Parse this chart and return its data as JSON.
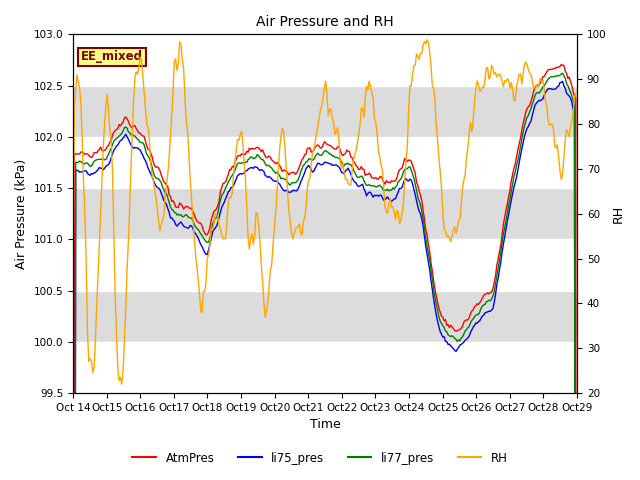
{
  "title": "Air Pressure and RH",
  "xlabel": "Time",
  "ylabel_left": "Air Pressure (kPa)",
  "ylabel_right": "RH",
  "ylim_left": [
    99.5,
    103.0
  ],
  "ylim_right": [
    20,
    100
  ],
  "yticks_left": [
    99.5,
    100.0,
    100.5,
    101.0,
    101.5,
    102.0,
    102.5,
    103.0
  ],
  "yticks_right": [
    20,
    30,
    40,
    50,
    60,
    70,
    80,
    90,
    100
  ],
  "xtick_labels": [
    "Oct 14",
    "Oct 15",
    "Oct 16",
    "Oct 17",
    "Oct 18",
    "Oct 19",
    "Oct 20",
    "Oct 21",
    "Oct 22",
    "Oct 23",
    "Oct 24",
    "Oct 25",
    "Oct 26",
    "Oct 27",
    "Oct 28",
    "Oct 29"
  ],
  "legend_labels": [
    "AtmPres",
    "li75_pres",
    "li77_pres",
    "RH"
  ],
  "line_colors": [
    "red",
    "blue",
    "green",
    "orange"
  ],
  "annotation_text": "EE_mixed",
  "annotation_facecolor": "#FFFF88",
  "annotation_edgecolor": "#800000",
  "bg_color": "#DCDCDC",
  "white_band_color": "white",
  "title_fontsize": 10,
  "axis_label_fontsize": 9,
  "tick_fontsize": 7.5
}
